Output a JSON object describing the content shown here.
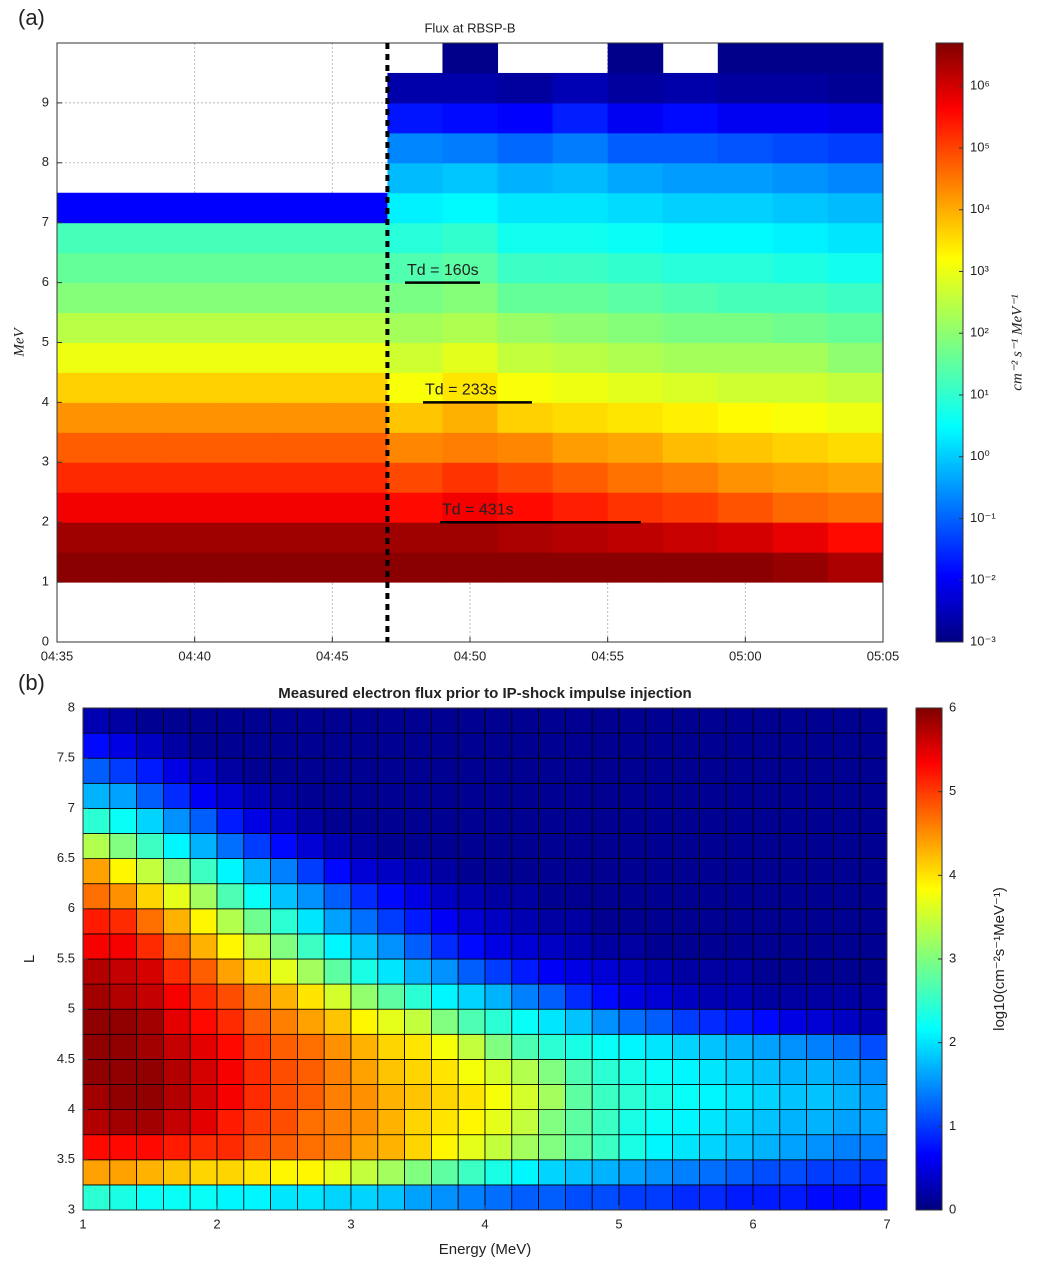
{
  "chart_data": [
    {
      "type": "heatmap",
      "panel_label": "(a)",
      "title": "Flux at RBSP-B",
      "ylabel": "MeV",
      "x": [
        "04:35",
        "04:37",
        "04:39",
        "04:41",
        "04:43",
        "04:45",
        "04:47",
        "04:49",
        "04:51",
        "04:53",
        "04:55",
        "04:57",
        "04:59",
        "05:01",
        "05:03"
      ],
      "xlim": [
        "04:35",
        "05:05"
      ],
      "xticks": [
        "04:35",
        "04:40",
        "04:45",
        "04:50",
        "04:55",
        "05:00",
        "05:05"
      ],
      "y": [
        1,
        1.5,
        2,
        2.5,
        3,
        3.5,
        4,
        4.5,
        5,
        5.5,
        6,
        6.5,
        7,
        7.5,
        8,
        8.5,
        9,
        9.5
      ],
      "ylim": [
        0,
        10
      ],
      "yticks": [
        0,
        1,
        2,
        3,
        4,
        5,
        6,
        7,
        8,
        9
      ],
      "grid": true,
      "event_line": "04:47",
      "z": [
        [
          6.6,
          6.6,
          6.6,
          6.6,
          6.6,
          6.6,
          6.6,
          6.6,
          6.6,
          6.6,
          6.6,
          6.6,
          6.6,
          6.5,
          6.3
        ],
        [
          6.4,
          6.4,
          6.4,
          6.4,
          6.4,
          6.4,
          6.4,
          6.4,
          6.3,
          6.2,
          6.1,
          6.0,
          5.9,
          5.7,
          5.4
        ],
        [
          5.6,
          5.6,
          5.6,
          5.6,
          5.6,
          5.6,
          5.4,
          5.6,
          5.4,
          5.2,
          5.0,
          4.9,
          4.7,
          4.5,
          4.4
        ],
        [
          5.1,
          5.1,
          5.1,
          5.1,
          5.1,
          5.1,
          4.8,
          5.0,
          4.8,
          4.6,
          4.4,
          4.3,
          4.1,
          4.0,
          3.9
        ],
        [
          4.6,
          4.6,
          4.6,
          4.6,
          4.6,
          4.6,
          4.2,
          4.3,
          4.2,
          4.0,
          3.9,
          3.7,
          3.6,
          3.5,
          3.4
        ],
        [
          4.1,
          4.1,
          4.1,
          4.1,
          4.1,
          4.1,
          3.6,
          3.8,
          3.5,
          3.4,
          3.3,
          3.2,
          3.1,
          3.0,
          2.9
        ],
        [
          3.5,
          3.5,
          3.5,
          3.5,
          3.5,
          3.5,
          3.0,
          3.3,
          3.0,
          2.9,
          2.8,
          2.7,
          2.6,
          2.6,
          2.5
        ],
        [
          2.9,
          2.9,
          2.9,
          2.9,
          2.9,
          2.9,
          2.6,
          2.8,
          2.5,
          2.4,
          2.3,
          2.2,
          2.2,
          2.2,
          2.0
        ],
        [
          2.4,
          2.4,
          2.4,
          2.4,
          2.4,
          2.4,
          2.2,
          2.3,
          2.1,
          2.0,
          1.9,
          1.8,
          1.8,
          1.7,
          1.6
        ],
        [
          1.9,
          1.9,
          1.9,
          1.9,
          1.9,
          1.9,
          1.8,
          1.9,
          1.6,
          1.6,
          1.5,
          1.4,
          1.3,
          1.3,
          1.2
        ],
        [
          1.6,
          1.6,
          1.6,
          1.6,
          1.6,
          1.6,
          1.4,
          1.5,
          1.2,
          1.2,
          1.1,
          1.0,
          1.0,
          0.9,
          0.8
        ],
        [
          1.3,
          1.3,
          1.3,
          1.3,
          1.3,
          1.3,
          1.0,
          1.1,
          0.8,
          0.8,
          0.7,
          0.6,
          0.6,
          0.5,
          0.4
        ],
        [
          -1.8,
          -1.8,
          -1.8,
          -1.8,
          -1.8,
          -1.8,
          0.5,
          0.6,
          0.4,
          0.4,
          0.3,
          0.2,
          0.2,
          0.1,
          0.0
        ],
        [
          null,
          null,
          null,
          null,
          null,
          null,
          0.0,
          0.1,
          -0.1,
          0.0,
          -0.2,
          -0.3,
          -0.3,
          -0.4,
          -0.5
        ],
        [
          null,
          null,
          null,
          null,
          null,
          null,
          -0.5,
          -0.6,
          -0.8,
          -0.6,
          -0.9,
          -0.9,
          -1.0,
          -1.1,
          -1.2
        ],
        [
          null,
          null,
          null,
          null,
          null,
          null,
          -1.6,
          -1.7,
          -1.8,
          -1.5,
          -1.9,
          -1.7,
          -1.9,
          -1.9,
          -2.0
        ],
        [
          null,
          null,
          null,
          null,
          null,
          null,
          -2.6,
          -2.6,
          -2.7,
          -2.5,
          -2.7,
          -2.6,
          -2.7,
          -2.7,
          -2.8
        ],
        [
          null,
          null,
          null,
          null,
          null,
          null,
          null,
          -2.9,
          null,
          null,
          -2.9,
          null,
          -2.9,
          -2.9,
          -2.9
        ]
      ],
      "clim": [
        -3,
        6.7
      ],
      "cticks": [
        {
          "value": -3,
          "label": "10⁻³"
        },
        {
          "value": -2,
          "label": "10⁻²"
        },
        {
          "value": -1,
          "label": "10⁻¹"
        },
        {
          "value": 0,
          "label": "10⁰"
        },
        {
          "value": 1,
          "label": "10¹"
        },
        {
          "value": 2,
          "label": "10²"
        },
        {
          "value": 3,
          "label": "10³"
        },
        {
          "value": 4,
          "label": "10⁴"
        },
        {
          "value": 5,
          "label": "10⁵"
        },
        {
          "value": 6,
          "label": "10⁶"
        }
      ],
      "clabel": "cm⁻² s⁻¹ MeV⁻¹",
      "annotations": [
        {
          "text": "Td = 160s",
          "y": 6
        },
        {
          "text": "Td = 233s",
          "y": 4
        },
        {
          "text": "Td = 431s",
          "y": 2
        }
      ]
    },
    {
      "type": "heatmap",
      "panel_label": "(b)",
      "title": "Measured electron flux prior to IP-shock impulse injection",
      "xlabel": "Energy (MeV)",
      "ylabel": "L",
      "x": [
        1,
        1.2,
        1.4,
        1.6,
        1.8,
        2,
        2.2,
        2.4,
        2.6,
        2.8,
        3,
        3.2,
        3.4,
        3.6,
        3.8,
        4,
        4.2,
        4.4,
        4.6,
        4.8,
        5,
        5.2,
        5.4,
        5.6,
        5.8,
        6,
        6.2,
        6.4,
        6.6,
        6.8
      ],
      "xlim": [
        1,
        7
      ],
      "xticks": [
        1,
        2,
        3,
        4,
        5,
        6,
        7
      ],
      "y": [
        3,
        3.25,
        3.5,
        3.75,
        4,
        4.25,
        4.5,
        4.75,
        5,
        5.25,
        5.5,
        5.75,
        6,
        6.25,
        6.5,
        6.75,
        7,
        7.25,
        7.5,
        7.75
      ],
      "ylim": [
        3,
        8
      ],
      "yticks": [
        3,
        3.5,
        4,
        4.5,
        5,
        5.5,
        6,
        6.5,
        7,
        7.5,
        8
      ],
      "z": [
        [
          2.5,
          2.4,
          2.3,
          2.3,
          2.3,
          2.2,
          2.2,
          2.1,
          2.1,
          2.0,
          2.0,
          1.9,
          1.7,
          1.6,
          1.5,
          1.4,
          1.3,
          1.3,
          1.2,
          1.2,
          1.1,
          1.1,
          1.0,
          1.0,
          0.9,
          0.9,
          0.9,
          0.8,
          0.8,
          0.8
        ],
        [
          4.3,
          4.3,
          4.2,
          4.1,
          4.0,
          4.0,
          3.9,
          3.8,
          3.8,
          3.6,
          3.4,
          3.2,
          3.0,
          2.8,
          2.6,
          2.4,
          2.2,
          2.0,
          1.9,
          1.8,
          1.7,
          1.6,
          1.5,
          1.4,
          1.3,
          1.2,
          1.2,
          1.1,
          1.1,
          1.0
        ],
        [
          5.2,
          5.2,
          5.2,
          5.1,
          5.0,
          5.0,
          4.8,
          4.7,
          4.6,
          4.5,
          4.3,
          4.2,
          4.0,
          3.8,
          3.6,
          3.4,
          3.2,
          3.0,
          2.8,
          2.6,
          2.4,
          2.2,
          2.1,
          2.0,
          1.9,
          1.8,
          1.7,
          1.6,
          1.5,
          1.5
        ],
        [
          5.7,
          5.8,
          5.8,
          5.6,
          5.4,
          5.1,
          4.9,
          4.8,
          4.6,
          4.5,
          4.4,
          4.2,
          4.0,
          3.9,
          3.8,
          3.6,
          3.4,
          3.0,
          2.8,
          2.6,
          2.4,
          2.3,
          2.2,
          2.1,
          2.0,
          1.9,
          1.8,
          1.8,
          1.7,
          1.7
        ],
        [
          5.8,
          5.9,
          5.9,
          5.7,
          5.5,
          5.3,
          5.0,
          4.8,
          4.7,
          4.5,
          4.4,
          4.2,
          4.1,
          4.0,
          3.9,
          3.7,
          3.5,
          3.2,
          2.8,
          2.6,
          2.5,
          2.4,
          2.3,
          2.2,
          2.1,
          2.0,
          1.9,
          1.9,
          1.8,
          1.7
        ],
        [
          5.9,
          5.9,
          5.9,
          5.7,
          5.5,
          5.3,
          5.0,
          4.8,
          4.7,
          4.5,
          4.3,
          4.1,
          4.0,
          3.9,
          3.7,
          3.5,
          3.3,
          3.0,
          2.7,
          2.5,
          2.4,
          2.3,
          2.2,
          2.1,
          2.0,
          1.9,
          1.8,
          1.8,
          1.7,
          1.6
        ],
        [
          5.9,
          5.9,
          5.8,
          5.6,
          5.4,
          5.2,
          4.9,
          4.7,
          4.6,
          4.4,
          4.2,
          4.0,
          3.9,
          3.7,
          3.4,
          3.0,
          2.7,
          2.5,
          2.4,
          2.3,
          2.2,
          2.1,
          2.0,
          1.9,
          1.8,
          1.7,
          1.6,
          1.5,
          1.4,
          1.2
        ],
        [
          5.9,
          5.9,
          5.8,
          5.4,
          5.2,
          5.0,
          4.7,
          4.5,
          4.3,
          4.1,
          3.8,
          3.6,
          3.4,
          3.0,
          2.7,
          2.5,
          2.3,
          2.1,
          1.9,
          1.6,
          1.4,
          1.3,
          1.1,
          1.0,
          0.9,
          0.8,
          0.6,
          0.5,
          0.4,
          0.3
        ],
        [
          5.8,
          5.7,
          5.6,
          5.3,
          5.0,
          4.8,
          4.5,
          4.2,
          3.9,
          3.5,
          3.1,
          2.8,
          2.5,
          2.2,
          2.0,
          1.8,
          1.5,
          1.3,
          1.0,
          0.8,
          0.6,
          0.5,
          0.4,
          0.3,
          0.3,
          0.2,
          0.2,
          0.2,
          0.2,
          0.2
        ],
        [
          5.7,
          5.6,
          5.5,
          5.0,
          4.7,
          4.3,
          4.0,
          3.6,
          3.2,
          2.8,
          2.4,
          2.1,
          1.8,
          1.6,
          1.3,
          1.1,
          0.9,
          0.7,
          0.6,
          0.5,
          0.4,
          0.3,
          0.2,
          0.2,
          0.2,
          0.1,
          0.1,
          0.1,
          0.1,
          0.1
        ],
        [
          5.3,
          5.3,
          5.0,
          4.6,
          4.2,
          3.8,
          3.4,
          3.0,
          2.6,
          2.2,
          1.9,
          1.6,
          1.3,
          1.0,
          0.8,
          0.6,
          0.5,
          0.4,
          0.3,
          0.2,
          0.2,
          0.1,
          0.1,
          0.1,
          0.1,
          0.1,
          0.1,
          0.1,
          0.1,
          0.1
        ],
        [
          5.1,
          5.0,
          4.6,
          4.2,
          3.8,
          3.3,
          2.9,
          2.5,
          2.1,
          1.7,
          1.4,
          1.1,
          0.9,
          0.7,
          0.5,
          0.4,
          0.3,
          0.2,
          0.2,
          0.1,
          0.1,
          0.1,
          0.1,
          0.1,
          0.1,
          0.1,
          0.1,
          0.1,
          0.1,
          0.1
        ],
        [
          4.6,
          4.4,
          4.0,
          3.6,
          3.2,
          2.7,
          2.3,
          1.9,
          1.6,
          1.3,
          1.0,
          0.8,
          0.6,
          0.4,
          0.3,
          0.2,
          0.2,
          0.1,
          0.1,
          0.1,
          0.1,
          0.1,
          0.1,
          0.1,
          0.1,
          0.1,
          0.1,
          0.1,
          0.1,
          0.1
        ],
        [
          4.3,
          3.8,
          3.4,
          3.0,
          2.6,
          2.2,
          1.8,
          1.5,
          1.1,
          0.8,
          0.5,
          0.4,
          0.3,
          0.2,
          0.1,
          0.1,
          0.1,
          0.1,
          0.1,
          0.1,
          0.1,
          0.1,
          0.1,
          0.1,
          0.1,
          0.1,
          0.1,
          0.1,
          0.1,
          0.1
        ],
        [
          3.3,
          3.0,
          2.6,
          2.2,
          1.8,
          1.4,
          1.1,
          0.8,
          0.5,
          0.3,
          0.2,
          0.1,
          0.1,
          0.1,
          0.1,
          0.1,
          0.1,
          0.1,
          0.1,
          0.1,
          0.1,
          0.1,
          0.1,
          0.1,
          0.1,
          0.1,
          0.1,
          0.1,
          0.1,
          0.1
        ],
        [
          2.5,
          2.3,
          2.0,
          1.6,
          1.3,
          0.9,
          0.6,
          0.4,
          0.2,
          0.1,
          0.1,
          0.1,
          0.1,
          0.1,
          0.1,
          0.1,
          0.1,
          0.1,
          0.1,
          0.1,
          0.1,
          0.1,
          0.1,
          0.1,
          0.1,
          0.1,
          0.1,
          0.1,
          0.1,
          0.1
        ],
        [
          1.8,
          1.7,
          1.3,
          1.0,
          0.7,
          0.5,
          0.3,
          0.2,
          0.1,
          0.1,
          0.1,
          0.1,
          0.1,
          0.1,
          0.1,
          0.1,
          0.1,
          0.1,
          0.1,
          0.1,
          0.1,
          0.1,
          0.1,
          0.1,
          0.1,
          0.1,
          0.1,
          0.1,
          0.1,
          0.1
        ],
        [
          1.3,
          1.1,
          0.9,
          0.6,
          0.4,
          0.2,
          0.1,
          0.1,
          0.1,
          0.1,
          0.1,
          0.1,
          0.1,
          0.1,
          0.1,
          0.1,
          0.1,
          0.1,
          0.1,
          0.1,
          0.1,
          0.1,
          0.1,
          0.1,
          0.1,
          0.1,
          0.1,
          0.1,
          0.1,
          0.1
        ],
        [
          0.8,
          0.6,
          0.4,
          0.2,
          0.1,
          0.1,
          0.1,
          0.1,
          0.1,
          0.1,
          0.1,
          0.1,
          0.1,
          0.1,
          0.1,
          0.1,
          0.1,
          0.1,
          0.1,
          0.1,
          0.1,
          0.1,
          0.1,
          0.1,
          0.1,
          0.1,
          0.1,
          0.1,
          0.1,
          0.1
        ],
        [
          0.3,
          0.2,
          0.1,
          0.1,
          0.1,
          0.1,
          0.1,
          0.1,
          0.1,
          0.1,
          0.1,
          0.1,
          0.1,
          0.1,
          0.1,
          0.1,
          0.1,
          0.1,
          0.1,
          0.1,
          0.1,
          0.1,
          0.1,
          0.1,
          0.1,
          0.1,
          0.1,
          0.1,
          0.1,
          0.1
        ]
      ],
      "clim": [
        0,
        6
      ],
      "cticks": [
        0,
        1,
        2,
        3,
        4,
        5,
        6
      ],
      "clabel": "log10(cm⁻²s⁻¹MeV⁻¹)"
    }
  ]
}
